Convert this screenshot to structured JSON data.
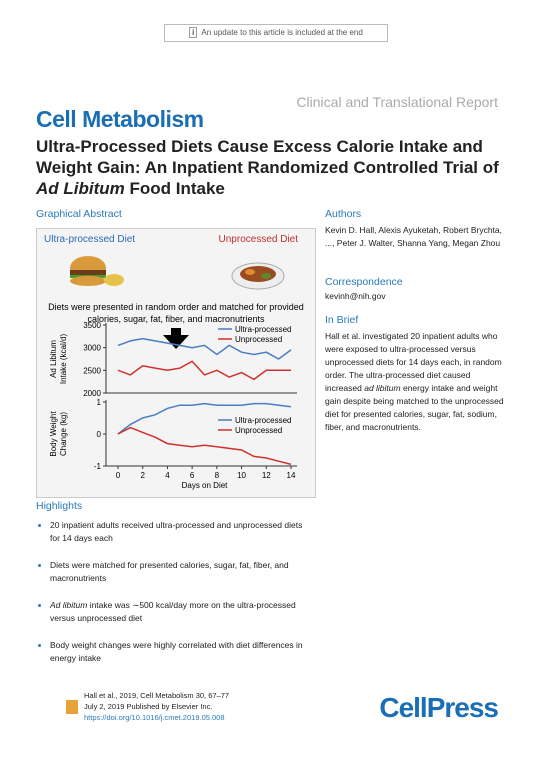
{
  "banner": "An update to this article is included at the end",
  "report_type": "Clinical and Translational Report",
  "journal": "Cell Metabolism",
  "title_parts": [
    "Ultra-Processed Diets Cause Excess Calorie Intake and Weight Gain: An Inpatient Randomized Controlled Trial of ",
    "Ad Libitum",
    " Food Intake"
  ],
  "graphical_abstract": {
    "heading": "Graphical Abstract",
    "left_label": "Ultra-processed Diet",
    "right_label": "Unprocessed Diet",
    "note": "Diets were presented in random order and matched for provided calories, sugar, fat, fiber, and macronutrients"
  },
  "authors": {
    "heading": "Authors",
    "names": "Kevin D. Hall, Alexis Ayuketah, Robert Brychta, ..., Peter J. Walter, Shanna Yang, Megan Zhou"
  },
  "correspondence": {
    "heading": "Correspondence",
    "email": "kevinh@nih.gov"
  },
  "in_brief": {
    "heading": "In Brief",
    "parts": [
      "Hall et al. investigated 20 inpatient adults who were exposed to ultra-processed versus unprocessed diets for 14 days each, in random order. The ultra-processed diet caused increased ",
      "ad libitum",
      " energy intake and weight gain despite being matched to the unprocessed diet for presented calories, sugar, fat, sodium, fiber, and macronutrients."
    ]
  },
  "highlights": {
    "heading": "Highlights",
    "items": [
      "20 inpatient adults received ultra-processed and unprocessed diets for 14 days each",
      "Diets were matched for presented calories, sugar, fat, fiber, and macronutrients",
      [
        "Ad libitum",
        " intake was ∼500 kcal/day more on the ultra-processed versus unprocessed diet"
      ],
      "Body weight changes were highly correlated with diet differences in energy intake"
    ]
  },
  "footer": {
    "citation": "Hall et al., 2019, Cell Metabolism 30, 67–77",
    "published": "July 2, 2019 Published by Elsevier Inc.",
    "doi": "https://doi.org/10.1016/j.cmet.2019.05.008",
    "publisher": "CellPress"
  },
  "chart_data": [
    {
      "type": "line",
      "y_label": [
        "Ad Libitum",
        "Intake (kcal/d)"
      ],
      "x": [
        0,
        1,
        2,
        3,
        4,
        5,
        6,
        7,
        8,
        9,
        10,
        11,
        12,
        13,
        14
      ],
      "xlim": [
        0,
        14
      ],
      "ylim": [
        2000,
        3500
      ],
      "yticks": [
        2000,
        2500,
        3000,
        3500
      ],
      "legend": "upper right",
      "series": [
        {
          "name": "Ultra-processed",
          "color": "#4a7dc4",
          "values": [
            3050,
            3150,
            3200,
            3150,
            3100,
            3050,
            3000,
            3050,
            2850,
            3050,
            2900,
            2850,
            2900,
            2750,
            2950
          ]
        },
        {
          "name": "Unprocessed",
          "color": "#d0312d",
          "values": [
            2500,
            2400,
            2600,
            2550,
            2500,
            2550,
            2700,
            2400,
            2500,
            2350,
            2450,
            2300,
            2500,
            2500,
            2500
          ]
        }
      ]
    },
    {
      "type": "line",
      "y_label": [
        "Body Weight",
        "Change (kg)"
      ],
      "x_label": "Days on Diet",
      "x": [
        0,
        1,
        2,
        3,
        4,
        5,
        6,
        7,
        8,
        9,
        10,
        11,
        12,
        13,
        14
      ],
      "xlim": [
        0,
        14
      ],
      "xticks": [
        0,
        2,
        4,
        6,
        8,
        10,
        12,
        14
      ],
      "ylim": [
        -1,
        1
      ],
      "yticks": [
        -1,
        0,
        1
      ],
      "legend": "center right",
      "series": [
        {
          "name": "Ultra-processed",
          "color": "#4a7dc4",
          "values": [
            0,
            0.3,
            0.5,
            0.6,
            0.8,
            0.9,
            0.9,
            0.95,
            0.9,
            0.9,
            0.9,
            0.95,
            0.95,
            0.9,
            0.85
          ]
        },
        {
          "name": "Unprocessed",
          "color": "#d0312d",
          "values": [
            0,
            0.2,
            0.05,
            -0.1,
            -0.3,
            -0.35,
            -0.4,
            -0.35,
            -0.4,
            -0.45,
            -0.5,
            -0.7,
            -0.75,
            -0.85,
            -0.95
          ]
        }
      ]
    }
  ]
}
